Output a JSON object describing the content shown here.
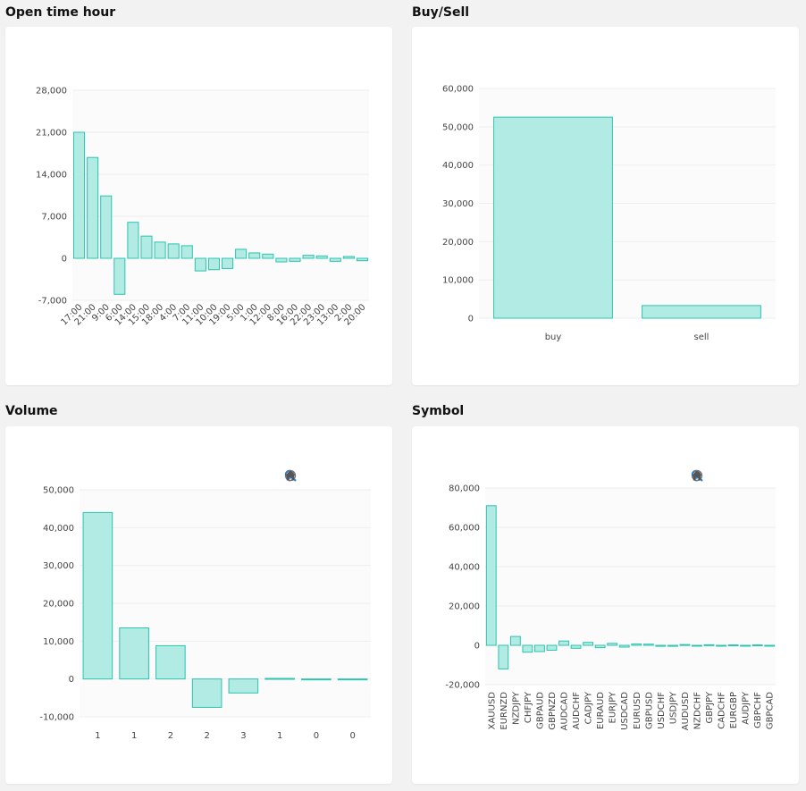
{
  "colors": {
    "bar_fill": "#b2ebe4",
    "bar_stroke": "#2bc4ae",
    "grid": "#eeeeee",
    "plot_bg": "#fbfbfb",
    "tool_gray": "#777777",
    "tool_blue": "#1f7fd4",
    "tool_home": "#555555"
  },
  "toolbar_icons": [
    "zoom-in-icon",
    "zoom-out-icon",
    "zoom-selection-icon",
    "pan-hand-icon",
    "home-icon"
  ],
  "panels": {
    "open_time_hour": {
      "title": "Open time hour"
    },
    "buy_sell": {
      "title": "Buy/Sell"
    },
    "volume": {
      "title": "Volume"
    },
    "symbol": {
      "title": "Symbol"
    }
  },
  "chart_data": [
    {
      "id": "open_time_hour",
      "type": "bar",
      "title": "Open time hour",
      "categories": [
        "17:00",
        "21:00",
        "9:00",
        "6:00",
        "14:00",
        "15:00",
        "18:00",
        "4:00",
        "7:00",
        "11:00",
        "10:00",
        "19:00",
        "5:00",
        "1:00",
        "12:00",
        "8:00",
        "16:00",
        "22:00",
        "23:00",
        "13:00",
        "2:00",
        "20:00"
      ],
      "values": [
        21000,
        16800,
        10400,
        -6000,
        6000,
        3700,
        2700,
        2400,
        2100,
        -2100,
        -1900,
        -1700,
        1500,
        900,
        700,
        -600,
        -500,
        500,
        400,
        -500,
        300,
        -400
      ],
      "ylim": [
        -7000,
        28000
      ],
      "yticks": [
        "28,000",
        "21,000",
        "14,000",
        "7,000",
        "0",
        "-7,000"
      ],
      "x_label_rotation": -45,
      "grid": true
    },
    {
      "id": "buy_sell",
      "type": "bar",
      "title": "Buy/Sell",
      "categories": [
        "buy",
        "sell"
      ],
      "values": [
        52500,
        3300
      ],
      "ylim": [
        0,
        60000
      ],
      "yticks": [
        "60,000",
        "50,000",
        "40,000",
        "30,000",
        "20,000",
        "10,000",
        "0"
      ],
      "grid": true
    },
    {
      "id": "volume",
      "type": "bar",
      "title": "Volume",
      "categories": [
        "1",
        "1",
        "2",
        "2",
        "3",
        "1",
        "0",
        "0"
      ],
      "values": [
        44000,
        13500,
        8800,
        -7500,
        -3700,
        150,
        -100,
        -200
      ],
      "ylim": [
        -10000,
        50000
      ],
      "yticks": [
        "50,000",
        "40,000",
        "30,000",
        "20,000",
        "10,000",
        "0",
        "-10,000"
      ],
      "grid": true
    },
    {
      "id": "symbol",
      "type": "bar",
      "title": "Symbol",
      "categories": [
        "XAUUSD",
        "EURNZD",
        "NZDJPY",
        "CHFJPY",
        "GBPAUD",
        "GBPNZD",
        "AUDCAD",
        "AUDCHF",
        "CADJPY",
        "EURAUD",
        "EURJPY",
        "USDCAD",
        "EURUSD",
        "GBPUSD",
        "USDCHF",
        "USDJPY",
        "AUDUSD",
        "NZDCHF",
        "GBPJPY",
        "CADCHF",
        "EURGBP",
        "AUDJPY",
        "GBPCHF",
        "GBPCAD"
      ],
      "values": [
        71000,
        -12000,
        4500,
        -3500,
        -3200,
        -2500,
        2200,
        -1500,
        1500,
        -1200,
        1000,
        -900,
        700,
        600,
        -500,
        -500,
        400,
        -400,
        300,
        -300,
        200,
        -200,
        200,
        -200
      ],
      "ylim": [
        -20000,
        80000
      ],
      "yticks": [
        "80,000",
        "60,000",
        "40,000",
        "20,000",
        "0",
        "-20,000"
      ],
      "x_label_rotation": -90,
      "grid": true
    }
  ]
}
